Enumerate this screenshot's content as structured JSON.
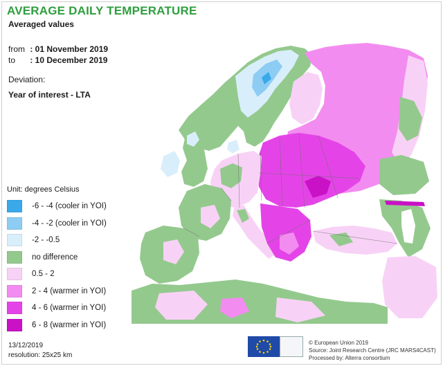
{
  "header": {
    "title": "AVERAGE DAILY TEMPERATURE",
    "subtitle": "Averaged values",
    "from_label": "from",
    "from_value": ": 01 November 2019",
    "to_label": "to",
    "to_value": ": 10 December 2019",
    "deviation_label": "Deviation:",
    "deviation_value": "Year of interest - LTA"
  },
  "legend": {
    "title": "Unit: degrees Celsius",
    "items": [
      {
        "label": "-6 - -4 (cooler in YOI)",
        "color": "#3aa9ea"
      },
      {
        "label": "-4 - -2 (cooler in YOI)",
        "color": "#8dcdf3"
      },
      {
        "label": "-2 - -0.5",
        "color": "#d9eefb"
      },
      {
        "label": "no difference",
        "color": "#94c98e"
      },
      {
        "label": "0.5 - 2",
        "color": "#f8d2f6"
      },
      {
        "label": "2 - 4 (warmer in YOI)",
        "color": "#f38cf0"
      },
      {
        "label": "4 - 6 (warmer in YOI)",
        "color": "#e444e7"
      },
      {
        "label": "6 - 8 (warmer in YOI)",
        "color": "#c911c6"
      }
    ]
  },
  "footer": {
    "date": "13/12/2019",
    "resolution": "resolution: 25x25 km",
    "copyright": "© European Union 2019",
    "source": "Source: Joint Research Centre (JRC MARS4CAST)",
    "processed": "Processed by: Alterra consortium"
  },
  "colors": {
    "sea": "#ffffff",
    "title_green": "#2e9e3e",
    "border": "#6e6e6e"
  },
  "icons": {
    "eu_logo": "eu-flag-icon",
    "partner_logo": "partner-logo-icon"
  }
}
